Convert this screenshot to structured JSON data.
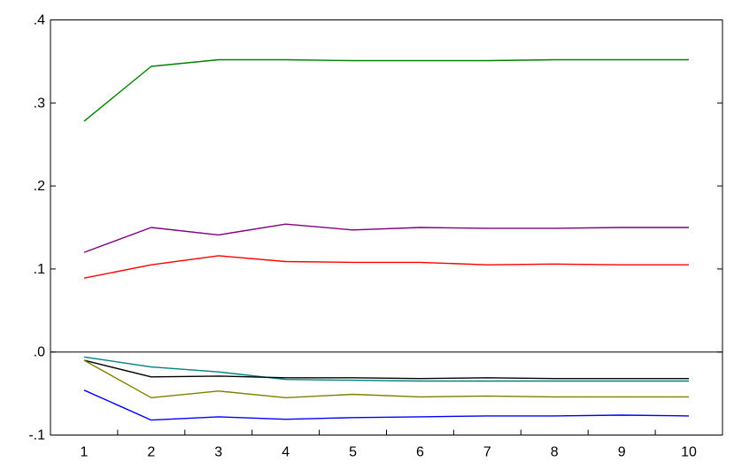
{
  "chart_data": {
    "type": "line",
    "title": "",
    "xlabel": "",
    "ylabel": "",
    "x": [
      1,
      2,
      3,
      4,
      5,
      6,
      7,
      8,
      9,
      10
    ],
    "x_tick_labels": [
      "1",
      "2",
      "3",
      "4",
      "5",
      "6",
      "7",
      "8",
      "9",
      "10"
    ],
    "ylim": [
      -0.1,
      0.4
    ],
    "y_ticks": [
      -0.1,
      0.0,
      0.1,
      0.2,
      0.3,
      0.4
    ],
    "y_tick_labels": [
      "-.1",
      ".0",
      ".1",
      ".2",
      ".3",
      ".4"
    ],
    "zero_line": true,
    "grid": false,
    "series": [
      {
        "color": "#008000",
        "values": [
          0.278,
          0.344,
          0.352,
          0.352,
          0.351,
          0.351,
          0.351,
          0.352,
          0.352,
          0.352
        ]
      },
      {
        "color": "#800080",
        "values": [
          0.12,
          0.15,
          0.141,
          0.154,
          0.147,
          0.15,
          0.149,
          0.149,
          0.15,
          0.15
        ]
      },
      {
        "color": "#ff0000",
        "values": [
          0.089,
          0.105,
          0.116,
          0.109,
          0.108,
          0.108,
          0.105,
          0.106,
          0.105,
          0.105
        ]
      },
      {
        "color": "#008080",
        "values": [
          -0.006,
          -0.018,
          -0.024,
          -0.033,
          -0.034,
          -0.035,
          -0.035,
          -0.035,
          -0.035,
          -0.035
        ]
      },
      {
        "color": "#000000",
        "values": [
          -0.01,
          -0.03,
          -0.029,
          -0.031,
          -0.031,
          -0.032,
          -0.031,
          -0.032,
          -0.032,
          -0.032
        ]
      },
      {
        "color": "#808000",
        "values": [
          -0.01,
          -0.055,
          -0.047,
          -0.055,
          -0.051,
          -0.054,
          -0.053,
          -0.054,
          -0.054,
          -0.054
        ]
      },
      {
        "color": "#0000ff",
        "values": [
          -0.046,
          -0.082,
          -0.078,
          -0.081,
          -0.079,
          -0.078,
          -0.077,
          -0.077,
          -0.076,
          -0.077
        ]
      }
    ]
  }
}
